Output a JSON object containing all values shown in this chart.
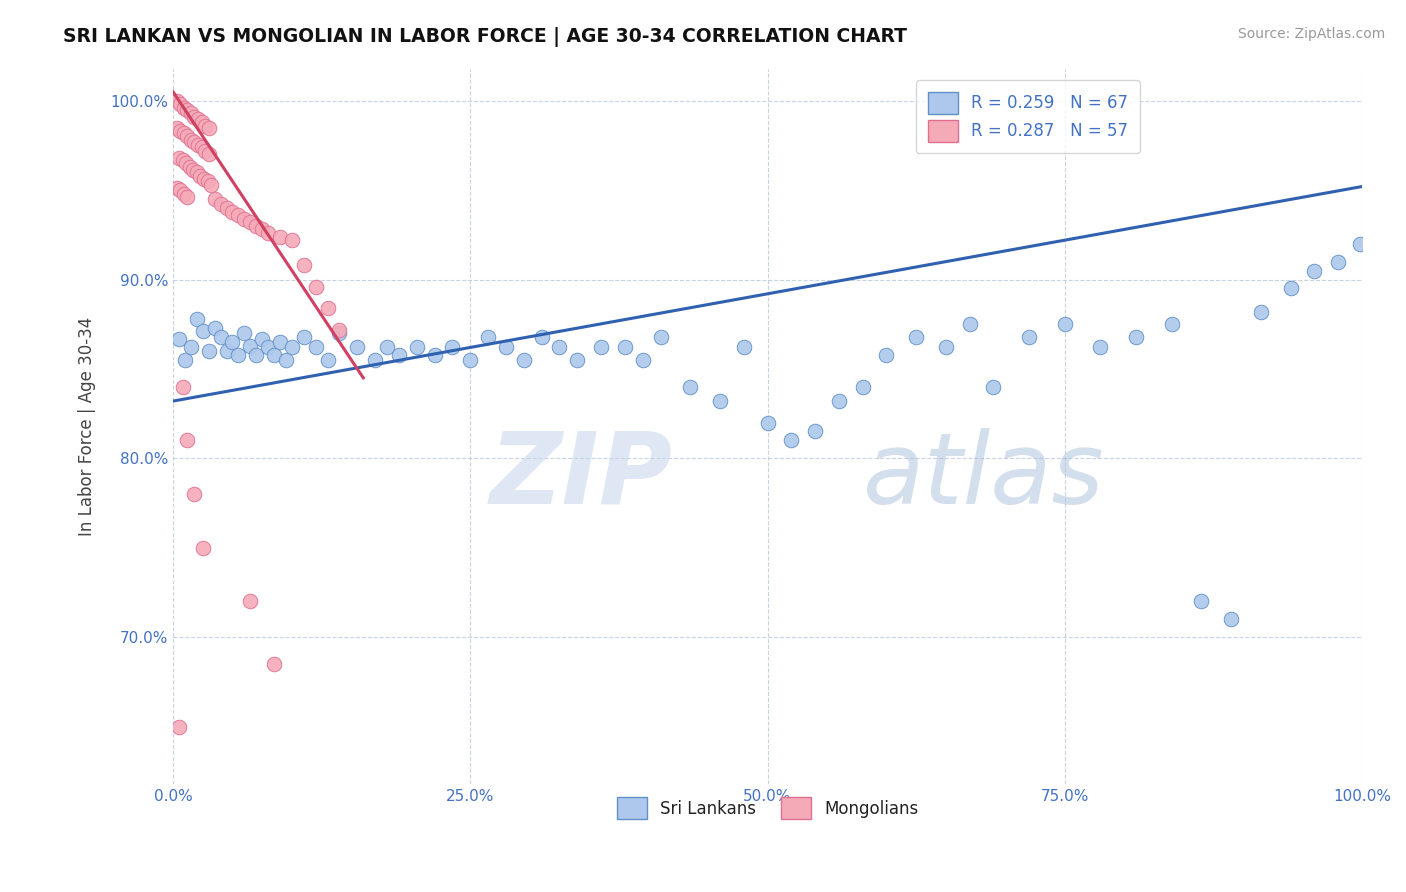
{
  "title": "SRI LANKAN VS MONGOLIAN IN LABOR FORCE | AGE 30-34 CORRELATION CHART",
  "source_text": "Source: ZipAtlas.com",
  "ylabel": "In Labor Force | Age 30-34",
  "xlim": [
    0.0,
    1.0
  ],
  "ylim": [
    0.618,
    1.018
  ],
  "x_ticks": [
    0.0,
    0.25,
    0.5,
    0.75,
    1.0
  ],
  "x_tick_labels": [
    "0.0%",
    "25.0%",
    "50.0%",
    "75.0%",
    "100.0%"
  ],
  "y_ticks": [
    0.7,
    0.8,
    0.9,
    1.0
  ],
  "y_tick_labels": [
    "70.0%",
    "80.0%",
    "90.0%",
    "100.0%"
  ],
  "sri_lankan_color": "#adc8ec",
  "mongolian_color": "#f5aab8",
  "sri_lankan_edge": "#6090c8",
  "mongolian_edge": "#e07090",
  "trend_blue": "#3060b0",
  "trend_pink": "#d04060",
  "legend_blue_label": "R = 0.259   N = 67",
  "legend_pink_label": "R = 0.287   N = 57",
  "bottom_legend_sri": "Sri Lankans",
  "bottom_legend_mon": "Mongolians",
  "blue_trend_x": [
    0.0,
    1.0
  ],
  "blue_trend_y": [
    0.832,
    0.952
  ],
  "pink_trend_x": [
    0.0,
    0.16
  ],
  "pink_trend_y": [
    1.005,
    0.845
  ],
  "sri_lankan_x": [
    0.005,
    0.01,
    0.015,
    0.02,
    0.025,
    0.03,
    0.035,
    0.04,
    0.045,
    0.05,
    0.055,
    0.06,
    0.065,
    0.07,
    0.075,
    0.08,
    0.085,
    0.09,
    0.095,
    0.1,
    0.11,
    0.12,
    0.13,
    0.14,
    0.155,
    0.17,
    0.18,
    0.19,
    0.205,
    0.22,
    0.235,
    0.25,
    0.265,
    0.28,
    0.295,
    0.31,
    0.325,
    0.34,
    0.36,
    0.38,
    0.395,
    0.41,
    0.435,
    0.46,
    0.48,
    0.5,
    0.52,
    0.54,
    0.56,
    0.58,
    0.6,
    0.625,
    0.65,
    0.67,
    0.69,
    0.72,
    0.75,
    0.78,
    0.81,
    0.84,
    0.865,
    0.89,
    0.915,
    0.94,
    0.96,
    0.98,
    0.998
  ],
  "sri_lankan_y": [
    0.867,
    0.855,
    0.862,
    0.878,
    0.871,
    0.86,
    0.873,
    0.868,
    0.86,
    0.865,
    0.858,
    0.87,
    0.863,
    0.858,
    0.867,
    0.862,
    0.858,
    0.865,
    0.855,
    0.862,
    0.868,
    0.862,
    0.855,
    0.87,
    0.862,
    0.855,
    0.862,
    0.858,
    0.862,
    0.858,
    0.862,
    0.855,
    0.868,
    0.862,
    0.855,
    0.868,
    0.862,
    0.855,
    0.862,
    0.862,
    0.855,
    0.868,
    0.84,
    0.832,
    0.862,
    0.82,
    0.81,
    0.815,
    0.832,
    0.84,
    0.858,
    0.868,
    0.862,
    0.875,
    0.84,
    0.868,
    0.875,
    0.862,
    0.868,
    0.875,
    0.72,
    0.71,
    0.882,
    0.895,
    0.905,
    0.91,
    0.92
  ],
  "mongolian_x": [
    0.003,
    0.006,
    0.009,
    0.012,
    0.015,
    0.018,
    0.021,
    0.024,
    0.027,
    0.03,
    0.003,
    0.006,
    0.009,
    0.012,
    0.015,
    0.018,
    0.021,
    0.024,
    0.027,
    0.03,
    0.005,
    0.008,
    0.011,
    0.014,
    0.017,
    0.02,
    0.023,
    0.026,
    0.029,
    0.032,
    0.003,
    0.006,
    0.009,
    0.012,
    0.035,
    0.04,
    0.045,
    0.05,
    0.055,
    0.06,
    0.065,
    0.07,
    0.075,
    0.08,
    0.09,
    0.1,
    0.11,
    0.12,
    0.13,
    0.14,
    0.008,
    0.012,
    0.018,
    0.025,
    0.065,
    0.085,
    0.005
  ],
  "mongolian_y": [
    1.0,
    0.998,
    0.996,
    0.995,
    0.993,
    0.991,
    0.99,
    0.988,
    0.986,
    0.985,
    0.985,
    0.983,
    0.982,
    0.98,
    0.978,
    0.977,
    0.975,
    0.974,
    0.972,
    0.97,
    0.968,
    0.967,
    0.965,
    0.963,
    0.961,
    0.96,
    0.958,
    0.956,
    0.955,
    0.953,
    0.951,
    0.95,
    0.948,
    0.946,
    0.945,
    0.942,
    0.94,
    0.938,
    0.936,
    0.934,
    0.932,
    0.93,
    0.928,
    0.926,
    0.924,
    0.922,
    0.908,
    0.896,
    0.884,
    0.872,
    0.84,
    0.81,
    0.78,
    0.75,
    0.72,
    0.685,
    0.65
  ]
}
